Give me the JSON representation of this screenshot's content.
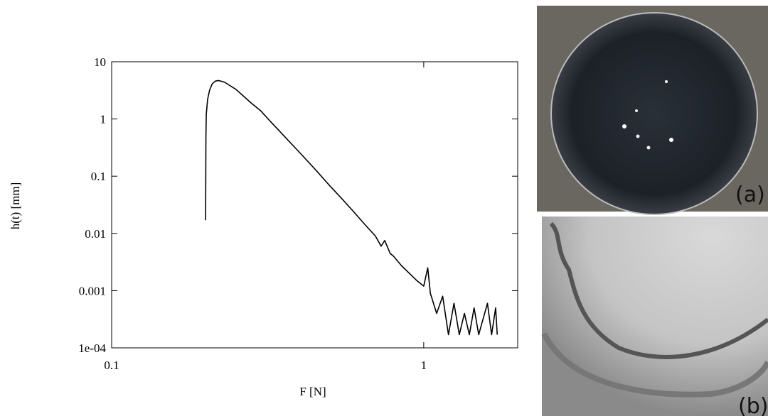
{
  "chart_data": {
    "type": "line",
    "x_label": "F [N]",
    "y_label": "h(t) [mm]",
    "x": [
      0.2,
      0.2005,
      0.201,
      0.203,
      0.206,
      0.21,
      0.215,
      0.22,
      0.23,
      0.25,
      0.28,
      0.3,
      0.32,
      0.36,
      0.4,
      0.45,
      0.5,
      0.55,
      0.6,
      0.65,
      0.7,
      0.73,
      0.75,
      0.78,
      0.8,
      0.85,
      0.9,
      0.95,
      1.0,
      1.03,
      1.05,
      1.1,
      1.15,
      1.2,
      1.25,
      1.3,
      1.35,
      1.4,
      1.45,
      1.5,
      1.6,
      1.65,
      1.7,
      1.72
    ],
    "series": [
      {
        "color": "#000000",
        "values": [
          0.017,
          0.5,
          1.2,
          2.2,
          3.2,
          4.1,
          4.6,
          4.7,
          4.4,
          3.3,
          1.9,
          1.4,
          0.95,
          0.48,
          0.26,
          0.13,
          0.068,
          0.039,
          0.023,
          0.014,
          0.009,
          0.006,
          0.0075,
          0.0045,
          0.004,
          0.0027,
          0.002,
          0.0015,
          0.0012,
          0.0025,
          0.0009,
          0.0004,
          0.0008,
          0.00017,
          0.0006,
          0.00017,
          0.0004,
          0.00017,
          0.0005,
          0.00017,
          0.0006,
          0.00017,
          0.0005,
          0.00017
        ]
      }
    ],
    "log_x": true,
    "log_y": true,
    "xlim": [
      0.1,
      2
    ],
    "ylim": [
      0.0001,
      10
    ],
    "xticks": [
      0.1,
      1
    ],
    "yticks": [
      {
        "value": 0.0001,
        "label": "1e-04"
      },
      0.001,
      0.01,
      0.1,
      1,
      10
    ]
  },
  "photos": [
    {
      "label": "(a)"
    },
    {
      "label": "(b)"
    }
  ]
}
